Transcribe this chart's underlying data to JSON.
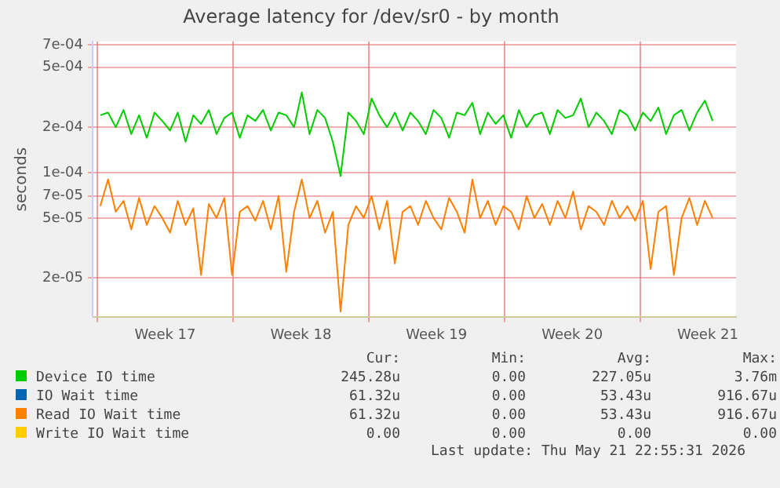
{
  "chart_data": {
    "type": "line",
    "title": "Average latency for /dev/sr0 - by month",
    "ylabel": "seconds",
    "log": "y",
    "grid": true,
    "legend": "bottom",
    "marker": "none",
    "line_style": "solid",
    "xlim": [
      "2026-04-19T18:00",
      "2026-05-22T23:00"
    ],
    "xticks": [
      {
        "value": "2026-04-20",
        "label": null
      },
      {
        "value": "2026-04-23T12:00",
        "label": "Week 17"
      },
      {
        "value": "2026-04-27",
        "label": null
      },
      {
        "value": "2026-04-30T12:00",
        "label": "Week 18"
      },
      {
        "value": "2026-05-04",
        "label": null
      },
      {
        "value": "2026-05-07T12:00",
        "label": "Week 19"
      },
      {
        "value": "2026-05-11",
        "label": null
      },
      {
        "value": "2026-05-14T12:00",
        "label": "Week 20"
      },
      {
        "value": "2026-05-18",
        "label": null
      },
      {
        "value": "2026-05-21T12:00",
        "label": "Week 21"
      }
    ],
    "ylim": [
      1.1e-05,
      0.00074
    ],
    "yticks": [
      {
        "value": 2e-05,
        "label": "2e-05"
      },
      {
        "value": 5e-05,
        "label": "5e-05"
      },
      {
        "value": 7e-05,
        "label": "7e-05"
      },
      {
        "value": 0.0001,
        "label": "1e-04"
      },
      {
        "value": 0.0002,
        "label": "2e-04"
      },
      {
        "value": 0.0005,
        "label": "5e-04"
      },
      {
        "value": 0.0007,
        "label": "7e-04"
      }
    ],
    "x": [
      "2026-04-20T03:36",
      "2026-04-20T13:12",
      "2026-04-20T22:48",
      "2026-04-21T08:24",
      "2026-04-21T18:00",
      "2026-04-22T03:36",
      "2026-04-22T13:12",
      "2026-04-22T22:48",
      "2026-04-23T08:24",
      "2026-04-23T18:00",
      "2026-04-24T03:36",
      "2026-04-24T13:12",
      "2026-04-24T22:48",
      "2026-04-25T08:24",
      "2026-04-25T18:00",
      "2026-04-26T03:36",
      "2026-04-26T13:12",
      "2026-04-26T22:48",
      "2026-04-27T08:24",
      "2026-04-27T18:00",
      "2026-04-28T03:36",
      "2026-04-28T13:12",
      "2026-04-28T22:48",
      "2026-04-29T08:24",
      "2026-04-29T18:00",
      "2026-04-30T03:36",
      "2026-04-30T13:12",
      "2026-04-30T22:48",
      "2026-05-01T08:24",
      "2026-05-01T18:00",
      "2026-05-02T03:36",
      "2026-05-02T13:12",
      "2026-05-02T22:48",
      "2026-05-03T08:24",
      "2026-05-03T18:00",
      "2026-05-04T03:36",
      "2026-05-04T13:12",
      "2026-05-04T22:48",
      "2026-05-05T08:24",
      "2026-05-05T18:00",
      "2026-05-06T03:36",
      "2026-05-06T13:12",
      "2026-05-06T22:48",
      "2026-05-07T08:24",
      "2026-05-07T18:00",
      "2026-05-08T03:36",
      "2026-05-08T13:12",
      "2026-05-08T22:48",
      "2026-05-09T08:24",
      "2026-05-09T18:00",
      "2026-05-10T03:36",
      "2026-05-10T13:12",
      "2026-05-10T22:48",
      "2026-05-11T08:24",
      "2026-05-11T18:00",
      "2026-05-12T03:36",
      "2026-05-12T13:12",
      "2026-05-12T22:48",
      "2026-05-13T08:24",
      "2026-05-13T18:00",
      "2026-05-14T03:36",
      "2026-05-14T13:12",
      "2026-05-14T22:48",
      "2026-05-15T08:24",
      "2026-05-15T18:00",
      "2026-05-16T03:36",
      "2026-05-16T13:12",
      "2026-05-16T22:48",
      "2026-05-17T08:24",
      "2026-05-17T18:00",
      "2026-05-18T03:36",
      "2026-05-18T13:12",
      "2026-05-18T22:48",
      "2026-05-19T08:24",
      "2026-05-19T18:00",
      "2026-05-20T03:36",
      "2026-05-20T13:12",
      "2026-05-20T22:48",
      "2026-05-21T08:24",
      "2026-05-21T18:00"
    ],
    "series": [
      {
        "name": "Device IO time",
        "color": "#00cc00",
        "values": [
          0.00024,
          0.00025,
          0.0002,
          0.00026,
          0.00018,
          0.00024,
          0.00017,
          0.00025,
          0.00022,
          0.00019,
          0.00025,
          0.00016,
          0.00024,
          0.00021,
          0.00026,
          0.00018,
          0.00023,
          0.00025,
          0.00017,
          0.00024,
          0.00022,
          0.00026,
          0.00019,
          0.00025,
          0.00024,
          0.0002,
          0.00034,
          0.00018,
          0.00026,
          0.00023,
          0.00016,
          9.5e-05,
          0.00025,
          0.00022,
          0.00018,
          0.00031,
          0.00024,
          0.0002,
          0.00025,
          0.00019,
          0.00025,
          0.00022,
          0.00018,
          0.00026,
          0.00023,
          0.00017,
          0.00025,
          0.00024,
          0.00029,
          0.00018,
          0.00025,
          0.00021,
          0.00024,
          0.00017,
          0.00026,
          0.0002,
          0.00024,
          0.00025,
          0.00018,
          0.00026,
          0.00023,
          0.00024,
          0.00031,
          0.0002,
          0.00025,
          0.00022,
          0.00018,
          0.00026,
          0.00024,
          0.00019,
          0.00025,
          0.00022,
          0.00027,
          0.00018,
          0.00024,
          0.00026,
          0.00019,
          0.00025,
          0.0003,
          0.00022
        ]
      },
      {
        "name": "IO Wait time",
        "color": "#0066b3",
        "values": [
          null,
          null,
          null,
          null,
          null,
          null,
          null,
          null,
          null,
          null,
          null,
          null,
          null,
          null,
          null,
          null,
          null,
          null,
          null,
          null,
          null,
          null,
          null,
          null,
          null,
          null,
          null,
          null,
          null,
          null,
          null,
          null,
          null,
          null,
          null,
          null,
          null,
          null,
          null,
          null,
          null,
          null,
          null,
          null,
          null,
          null,
          null,
          null,
          null,
          null,
          null,
          null,
          null,
          null,
          null,
          null,
          null,
          null,
          null,
          null,
          null,
          null,
          null,
          null,
          null,
          null,
          null,
          null,
          null,
          null,
          null,
          null,
          null,
          null,
          null,
          null,
          null,
          null,
          null,
          null
        ]
      },
      {
        "name": "Read IO Wait time",
        "color": "#ff8000",
        "values": [
          6e-05,
          9e-05,
          5.5e-05,
          6.5e-05,
          4.2e-05,
          6.8e-05,
          4.5e-05,
          6e-05,
          5e-05,
          4e-05,
          6.5e-05,
          4.5e-05,
          5.8e-05,
          2.1e-05,
          6.2e-05,
          5e-05,
          6.8e-05,
          2.1e-05,
          5.5e-05,
          6e-05,
          4.8e-05,
          6.5e-05,
          4.2e-05,
          7e-05,
          2.2e-05,
          5.5e-05,
          9e-05,
          5e-05,
          6.5e-05,
          4e-05,
          5.5e-05,
          1.2e-05,
          4.5e-05,
          6e-05,
          5e-05,
          7e-05,
          4.2e-05,
          6.5e-05,
          2.5e-05,
          5.5e-05,
          6e-05,
          4.5e-05,
          6.5e-05,
          5e-05,
          4.2e-05,
          6.8e-05,
          5.5e-05,
          4e-05,
          9e-05,
          5e-05,
          6.5e-05,
          4.5e-05,
          6e-05,
          5.5e-05,
          4.2e-05,
          7e-05,
          5e-05,
          6.2e-05,
          4.5e-05,
          6.5e-05,
          5e-05,
          7.5e-05,
          4.2e-05,
          6e-05,
          5.5e-05,
          4.5e-05,
          6.5e-05,
          5e-05,
          6e-05,
          4.8e-05,
          6.5e-05,
          2.3e-05,
          5.5e-05,
          6e-05,
          2.1e-05,
          5e-05,
          6.8e-05,
          4.5e-05,
          6.5e-05,
          5e-05
        ]
      },
      {
        "name": "Write IO Wait time",
        "color": "#ffcc00",
        "values": [
          null,
          null,
          null,
          null,
          null,
          null,
          null,
          null,
          null,
          null,
          null,
          null,
          null,
          null,
          null,
          null,
          null,
          null,
          null,
          null,
          null,
          null,
          null,
          null,
          null,
          null,
          null,
          null,
          null,
          null,
          null,
          null,
          null,
          null,
          null,
          null,
          null,
          null,
          null,
          null,
          null,
          null,
          null,
          null,
          null,
          null,
          null,
          null,
          null,
          null,
          null,
          null,
          null,
          null,
          null,
          null,
          null,
          null,
          null,
          null,
          null,
          null,
          null,
          null,
          null,
          null,
          null,
          null,
          null,
          null,
          null,
          null,
          null,
          null,
          null,
          null,
          null,
          null,
          null,
          null
        ]
      }
    ],
    "annotations": [
      "Cur:",
      "Min:",
      "Avg:",
      "Max:",
      "245.28u",
      "0.00",
      "227.05u",
      "3.76m",
      "61.32u",
      "0.00",
      "53.43u",
      "916.67u",
      "61.32u",
      "0.00",
      "53.43u",
      "916.67u",
      "0.00",
      "0.00",
      "0.00",
      "0.00",
      "Last update: Thu May 21 22:55:31 2026"
    ]
  }
}
